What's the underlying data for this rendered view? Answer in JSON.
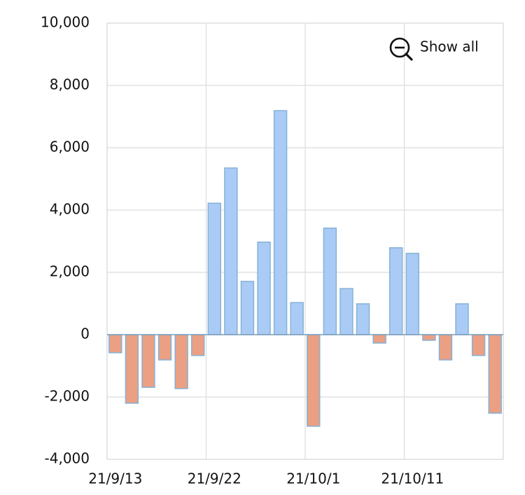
{
  "chart_data": {
    "type": "bar",
    "button": "Show all",
    "categories": [
      "21/9/13",
      null,
      null,
      null,
      null,
      null,
      "21/9/22",
      null,
      null,
      null,
      null,
      null,
      "21/10/1",
      null,
      null,
      null,
      null,
      null,
      "21/10/11",
      null,
      null,
      null,
      null,
      null
    ],
    "values": [
      -580,
      -2200,
      -1690,
      -810,
      -1730,
      -670,
      4220,
      5350,
      1710,
      2970,
      7190,
      1030,
      -2940,
      3420,
      1480,
      990,
      -270,
      2790,
      2610,
      -180,
      -810,
      990,
      -670,
      -2520
    ],
    "positive_color": "#a9cbf6",
    "negative_color": "#eb9f83",
    "ylim": [
      -4000,
      10000
    ],
    "yticks": [
      {
        "value": -4000,
        "label": "-4,000"
      },
      {
        "value": -2000,
        "label": "-2,000"
      },
      0,
      {
        "value": 2000,
        "label": "2,000"
      },
      {
        "value": 4000,
        "label": "4,000"
      },
      {
        "value": 6000,
        "label": "6,000"
      },
      {
        "value": 8000,
        "label": "8,000"
      },
      {
        "value": 10000,
        "label": "10,000"
      }
    ],
    "grid": true
  }
}
